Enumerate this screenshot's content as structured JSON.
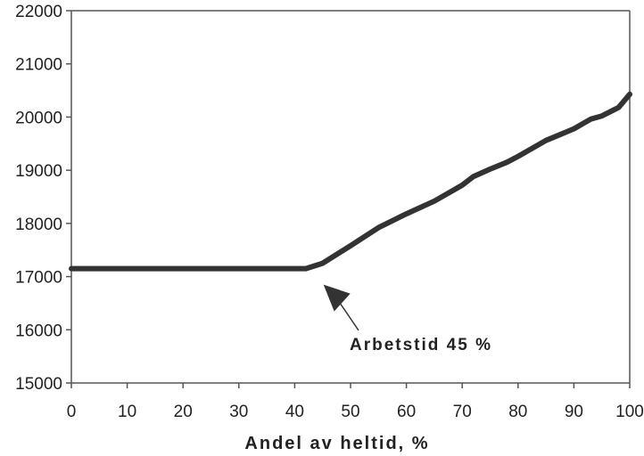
{
  "chart_data": {
    "type": "line",
    "title": "",
    "xlabel": "Andel av heltid, %",
    "ylabel": "",
    "xlim": [
      0,
      100
    ],
    "ylim": [
      15000,
      22000
    ],
    "x_ticks": [
      "0",
      "10",
      "20",
      "30",
      "40",
      "50",
      "60",
      "70",
      "80",
      "90",
      "100"
    ],
    "y_ticks": [
      "15000",
      "16000",
      "17000",
      "18000",
      "19000",
      "20000",
      "21000",
      "22000"
    ],
    "grid": false,
    "legend": "none",
    "line_color": "#333333",
    "series": [
      {
        "x": [
          0,
          10,
          20,
          30,
          42,
          45,
          50,
          55,
          60,
          65,
          70,
          72,
          75,
          78,
          80,
          85,
          90,
          93,
          95,
          98,
          100
        ],
        "values": [
          17150,
          17150,
          17150,
          17150,
          17150,
          17250,
          17580,
          17920,
          18180,
          18420,
          18720,
          18880,
          19020,
          19150,
          19260,
          19560,
          19780,
          19960,
          20020,
          20180,
          20430
        ]
      }
    ],
    "annotation": {
      "text": "Arbetstid 45 %",
      "x": 45,
      "y": 17150
    }
  }
}
